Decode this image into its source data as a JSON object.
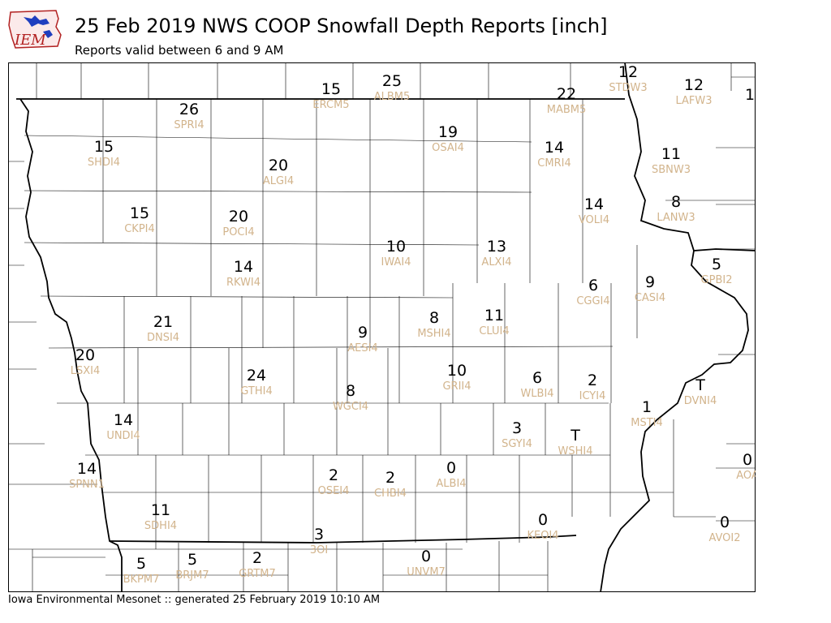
{
  "header": {
    "logo_text": "IEM",
    "title": "25 Feb 2019 NWS COOP Snowfall Depth Reports [inch]",
    "subtitle": "Reports valid between 6 and 9 AM"
  },
  "footer": {
    "text": "Iowa Environmental Mesonet :: generated 25 February 2019 10:10 AM"
  },
  "colors": {
    "value_text": "#000000",
    "station_text": "#d2b48c",
    "county_lines": "#000000",
    "logo_red": "#b22222",
    "logo_blue": "#1f3fbf"
  },
  "reports": [
    {
      "value": "12",
      "station": "STDW3"
    },
    {
      "value": "12",
      "station": "LAFW3"
    },
    {
      "value": "1",
      "station": ""
    },
    {
      "value": "15",
      "station": "ERCM5"
    },
    {
      "value": "25",
      "station": "ALBM5"
    },
    {
      "value": "22",
      "station": "MABM5"
    },
    {
      "value": "26",
      "station": "SPRI4"
    },
    {
      "value": "19",
      "station": "OSAI4"
    },
    {
      "value": "15",
      "station": "SHDI4"
    },
    {
      "value": "20",
      "station": "ALGI4"
    },
    {
      "value": "14",
      "station": "CMRI4"
    },
    {
      "value": "11",
      "station": "SBNW3"
    },
    {
      "value": "14",
      "station": "VOLI4"
    },
    {
      "value": "8",
      "station": "LANW3"
    },
    {
      "value": "15",
      "station": "CKPI4"
    },
    {
      "value": "20",
      "station": "POCI4"
    },
    {
      "value": "10",
      "station": "IWAI4"
    },
    {
      "value": "13",
      "station": "ALXI4"
    },
    {
      "value": "5",
      "station": "GPBI2"
    },
    {
      "value": "14",
      "station": "RKWI4"
    },
    {
      "value": "6",
      "station": "CGGI4"
    },
    {
      "value": "9",
      "station": "CASI4"
    },
    {
      "value": "21",
      "station": "DNSI4"
    },
    {
      "value": "8",
      "station": "MSHI4"
    },
    {
      "value": "11",
      "station": "CLUI4"
    },
    {
      "value": "9",
      "station": "AESI4"
    },
    {
      "value": "20",
      "station": "LSXI4"
    },
    {
      "value": "24",
      "station": "GTHI4"
    },
    {
      "value": "10",
      "station": "GRII4"
    },
    {
      "value": "6",
      "station": "WLBI4"
    },
    {
      "value": "2",
      "station": "ICYI4"
    },
    {
      "value": "T",
      "station": "DVNI4"
    },
    {
      "value": "8",
      "station": "WGCI4"
    },
    {
      "value": "1",
      "station": "MSTI4"
    },
    {
      "value": "14",
      "station": "UNDI4"
    },
    {
      "value": "3",
      "station": "SGYI4"
    },
    {
      "value": "T",
      "station": "WSHI4"
    },
    {
      "value": "0",
      "station": "AOA"
    },
    {
      "value": "14",
      "station": "SPNN1"
    },
    {
      "value": "2",
      "station": "OSEI4"
    },
    {
      "value": "2",
      "station": "CHBI4"
    },
    {
      "value": "0",
      "station": "ALBI4"
    },
    {
      "value": "11",
      "station": "SDHI4"
    },
    {
      "value": "0",
      "station": "KEOI4"
    },
    {
      "value": "0",
      "station": "AVOI2"
    },
    {
      "value": "3",
      "station": "3OI"
    },
    {
      "value": "5",
      "station": "BKPM7"
    },
    {
      "value": "5",
      "station": "BRJM7"
    },
    {
      "value": "2",
      "station": "GRTM7"
    },
    {
      "value": "0",
      "station": "UNVM7"
    }
  ]
}
